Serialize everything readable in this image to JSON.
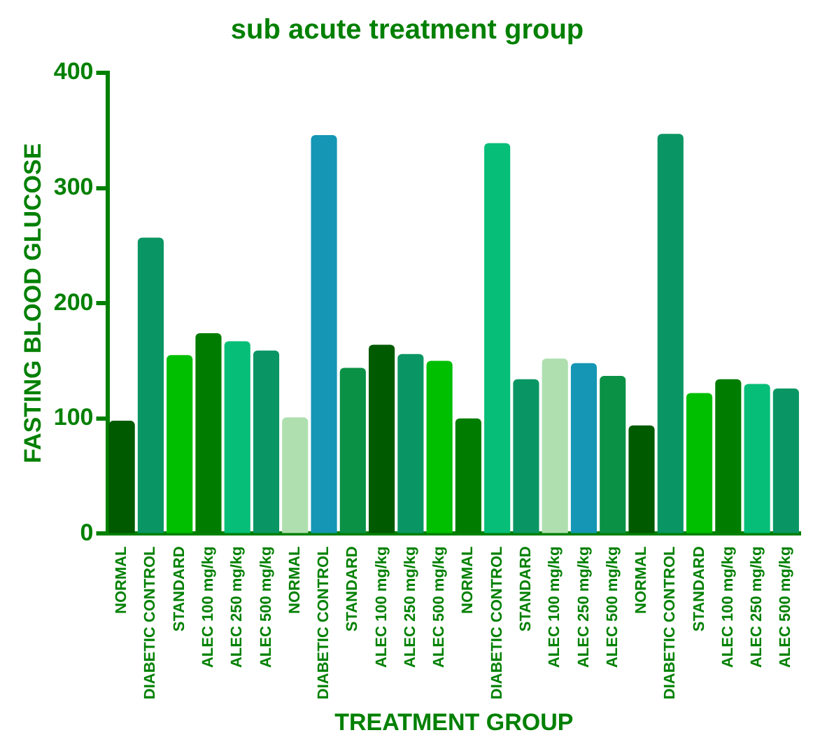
{
  "chart_data": {
    "type": "bar",
    "title": "sub acute treatment group",
    "xlabel": "TREATMENT GROUP",
    "ylabel": "FASTING BLOOD GLUCOSE",
    "categories": [
      "NORMAL",
      "DIABETIC CONTROL",
      "STANDARD",
      "ALEC 100 mg/kg",
      "ALEC 250 mg/kg",
      "ALEC 500 mg/kg",
      "NORMAL",
      "DIABETIC CONTROL",
      "STANDARD",
      "ALEC 100 mg/kg",
      "ALEC 250 mg/kg",
      "ALEC 500 mg/kg",
      "NORMAL",
      "DIABETIC CONTROL",
      "STANDARD",
      "ALEC 100 mg/kg",
      "ALEC 250 mg/kg",
      "ALEC 500 mg/kg",
      "NORMAL",
      "DIABETIC CONTROL",
      "STANDARD",
      "ALEC 100 mg/kg",
      "ALEC 250 mg/kg",
      "ALEC 500 mg/kg"
    ],
    "values": [
      98,
      257,
      155,
      174,
      167,
      159,
      101,
      346,
      144,
      164,
      156,
      150,
      100,
      339,
      134,
      152,
      148,
      137,
      94,
      347,
      122,
      134,
      130,
      126
    ],
    "colors": [
      "#005a00",
      "#0a9664",
      "#00be00",
      "#007d00",
      "#06be78",
      "#0a9664",
      "#afdfaf",
      "#1496b4",
      "#0a9146",
      "#005a00",
      "#0a9664",
      "#00be00",
      "#007d00",
      "#06be78",
      "#0a9664",
      "#afdfaf",
      "#1496b4",
      "#0a9146",
      "#005a00",
      "#0a9664",
      "#00be00",
      "#007d00",
      "#06be78",
      "#0a9664"
    ],
    "ylim": [
      0,
      400
    ],
    "yticks": [
      0,
      100,
      200,
      300,
      400
    ],
    "grid": false,
    "legend": false
  }
}
